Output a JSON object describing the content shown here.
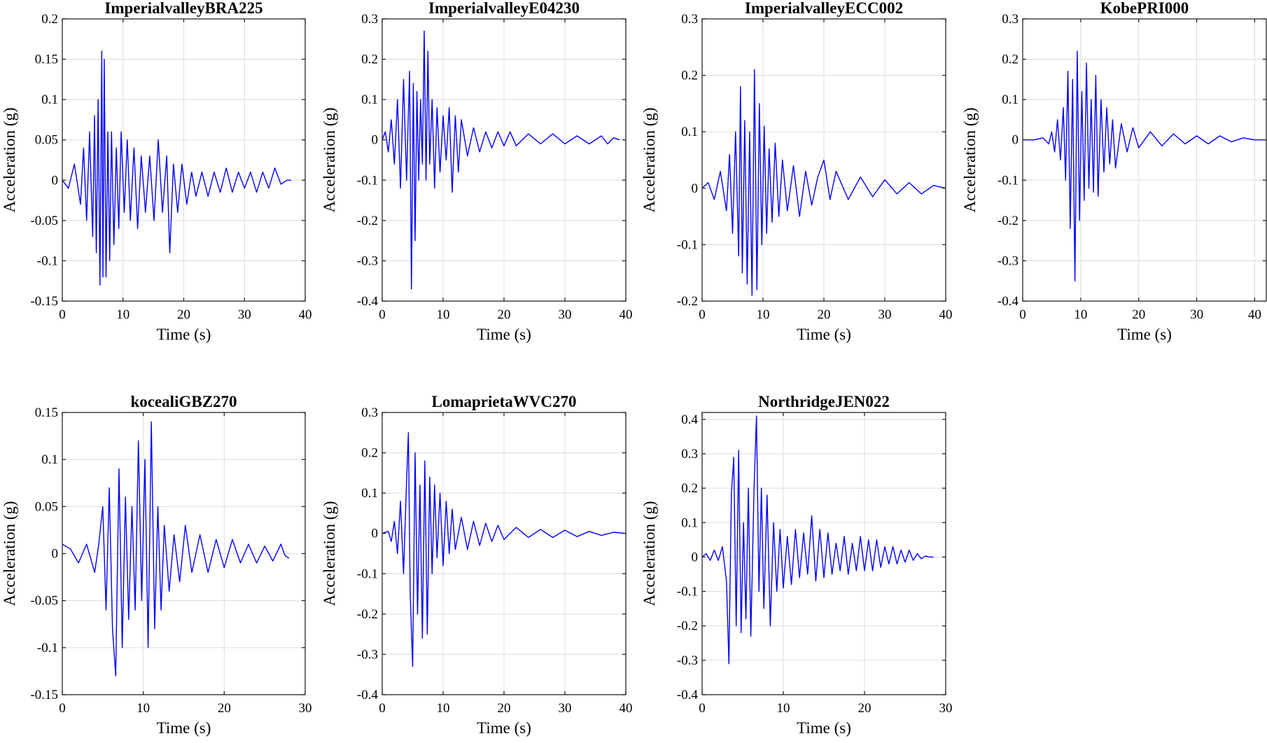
{
  "colors": {
    "trace": "#0000ff",
    "grid": "#dcdcdc",
    "axis": "#262626"
  },
  "chart_data": [
    {
      "type": "line",
      "title": "ImperialvalleyBRA225",
      "xlabel": "Time (s)",
      "ylabel": "Acceleration (g)",
      "xlim": [
        0,
        40
      ],
      "ylim": [
        -0.15,
        0.2
      ],
      "xticks": [
        0,
        10,
        20,
        30,
        40
      ],
      "xtick_labels": [
        "0",
        "10",
        "20",
        "30",
        "40"
      ],
      "yticks": [
        -0.15,
        -0.1,
        -0.05,
        0,
        0.05,
        0.1,
        0.15,
        0.2
      ],
      "ytick_labels": [
        "-0.15",
        "-0.1",
        "-0.05",
        "0",
        "0.05",
        "0.1",
        "0.15",
        "0.2"
      ],
      "grid": true,
      "series": [
        {
          "t": [
            0,
            1,
            2,
            3,
            3.5,
            4,
            4.5,
            5,
            5.3,
            5.6,
            5.9,
            6.2,
            6.5,
            6.7,
            6.9,
            7.2,
            7.5,
            7.8,
            8.1,
            8.5,
            8.9,
            9.3,
            9.7,
            10.2,
            10.7,
            11.2,
            11.8,
            12.4,
            13,
            13.7,
            14.4,
            15.1,
            15.8,
            16.5,
            17.2,
            17.7,
            18.3,
            19,
            19.7,
            20.5,
            21.3,
            22,
            23,
            24,
            25,
            26,
            27,
            28,
            29,
            30,
            31,
            32,
            33,
            34,
            35,
            36,
            37,
            37.7
          ],
          "y": [
            0,
            -0.01,
            0.02,
            -0.03,
            0.04,
            -0.05,
            0.06,
            -0.07,
            0.08,
            -0.09,
            0.1,
            -0.13,
            0.16,
            -0.12,
            0.15,
            -0.12,
            0.06,
            -0.1,
            0.06,
            -0.08,
            0.04,
            -0.06,
            0.06,
            -0.04,
            0.05,
            -0.05,
            0.04,
            -0.06,
            0.03,
            -0.04,
            0.03,
            -0.05,
            0.05,
            -0.04,
            0.03,
            -0.09,
            0.02,
            -0.04,
            0.02,
            -0.03,
            0.01,
            -0.02,
            0.01,
            -0.02,
            0.01,
            -0.015,
            0.015,
            -0.015,
            0.01,
            -0.01,
            0.01,
            -0.015,
            0.01,
            -0.01,
            0.015,
            -0.005,
            0,
            0
          ]
        }
      ]
    },
    {
      "type": "line",
      "title": "ImperialvalleyE04230",
      "xlabel": "Time (s)",
      "ylabel": "Acceleration (g)",
      "xlim": [
        0,
        40
      ],
      "ylim": [
        -0.4,
        0.3
      ],
      "xticks": [
        0,
        10,
        20,
        30,
        40
      ],
      "xtick_labels": [
        "0",
        "10",
        "20",
        "30",
        "40"
      ],
      "yticks": [
        -0.4,
        -0.3,
        -0.2,
        -0.1,
        0,
        0.1,
        0.2,
        0.3
      ],
      "ytick_labels": [
        "-0.4",
        "-0.3",
        "-0.2",
        "-0.1",
        "0",
        "0.1",
        "0.2",
        "0.3"
      ],
      "grid": true,
      "series": [
        {
          "t": [
            0,
            0.5,
            1,
            1.5,
            2,
            2.5,
            3,
            3.5,
            4,
            4.5,
            4.8,
            5.1,
            5.4,
            5.7,
            6,
            6.3,
            6.6,
            6.9,
            7.2,
            7.5,
            7.8,
            8.2,
            8.6,
            9,
            9.5,
            10,
            10.5,
            11,
            11.5,
            12,
            12.5,
            13,
            14,
            15,
            16,
            17,
            18,
            19,
            20,
            21,
            22,
            24,
            26,
            28,
            30,
            32,
            34,
            36,
            37,
            38,
            39
          ],
          "y": [
            0,
            0.02,
            -0.03,
            0.05,
            -0.06,
            0.1,
            -0.12,
            0.15,
            -0.1,
            0.17,
            -0.37,
            0.14,
            -0.25,
            0.12,
            -0.1,
            0.1,
            -0.06,
            0.27,
            -0.1,
            0.22,
            -0.06,
            0.1,
            -0.12,
            0.08,
            -0.08,
            0.06,
            -0.05,
            0.08,
            -0.13,
            0.06,
            -0.08,
            0.05,
            -0.04,
            0.03,
            -0.03,
            0.02,
            -0.02,
            0.02,
            -0.015,
            0.02,
            -0.015,
            0.015,
            -0.01,
            0.015,
            -0.01,
            0.01,
            -0.01,
            0.01,
            -0.01,
            0.005,
            0
          ]
        }
      ]
    },
    {
      "type": "line",
      "title": "ImperialvalleyECC002",
      "xlabel": "Time (s)",
      "ylabel": "Acceleration (g)",
      "xlim": [
        0,
        40
      ],
      "ylim": [
        -0.2,
        0.3
      ],
      "xticks": [
        0,
        10,
        20,
        30,
        40
      ],
      "xtick_labels": [
        "0",
        "10",
        "20",
        "30",
        "40"
      ],
      "yticks": [
        -0.2,
        -0.1,
        0,
        0.1,
        0.2,
        0.3
      ],
      "ytick_labels": [
        "-0.2",
        "-0.1",
        "0",
        "0.1",
        "0.2",
        "0.3"
      ],
      "grid": true,
      "series": [
        {
          "t": [
            0,
            1,
            2,
            3,
            4,
            4.5,
            5,
            5.5,
            6,
            6.3,
            6.6,
            7,
            7.4,
            7.8,
            8.2,
            8.6,
            9,
            9.4,
            9.8,
            10.2,
            10.6,
            11,
            11.5,
            12,
            12.6,
            13.2,
            14,
            15,
            16,
            17,
            18,
            19,
            20,
            21,
            22,
            24,
            26,
            28,
            30,
            32,
            34,
            36,
            38,
            40
          ],
          "y": [
            0,
            0.01,
            -0.02,
            0.03,
            -0.04,
            0.06,
            -0.08,
            0.1,
            -0.12,
            0.18,
            -0.15,
            0.12,
            -0.17,
            0.1,
            -0.19,
            0.21,
            -0.18,
            0.15,
            -0.1,
            0.11,
            -0.08,
            0.07,
            -0.06,
            0.08,
            -0.05,
            0.05,
            -0.04,
            0.04,
            -0.05,
            0.03,
            -0.03,
            0.02,
            0.05,
            -0.02,
            0.03,
            -0.02,
            0.02,
            -0.015,
            0.015,
            -0.01,
            0.01,
            -0.01,
            0.005,
            0
          ]
        }
      ]
    },
    {
      "type": "line",
      "title": "KobePRI000",
      "xlabel": "Time (s)",
      "ylabel": "Acceleration (g)",
      "xlim": [
        0,
        42
      ],
      "ylim": [
        -0.4,
        0.3
      ],
      "xticks": [
        0,
        10,
        20,
        30,
        40
      ],
      "xtick_labels": [
        "0",
        "10",
        "20",
        "30",
        "40"
      ],
      "yticks": [
        -0.4,
        -0.3,
        -0.2,
        -0.1,
        0,
        0.1,
        0.2,
        0.3
      ],
      "ytick_labels": [
        "-0.4",
        "-0.3",
        "-0.2",
        "-0.1",
        "0",
        "0.1",
        "0.2",
        "0.3"
      ],
      "grid": true,
      "series": [
        {
          "t": [
            0,
            2,
            3.5,
            4.5,
            5,
            5.5,
            6,
            6.5,
            7,
            7.4,
            7.8,
            8.2,
            8.6,
            9,
            9.4,
            9.8,
            10.2,
            10.6,
            11,
            11.4,
            11.8,
            12.2,
            12.6,
            13,
            13.5,
            14,
            14.5,
            15,
            15.5,
            16,
            17,
            18,
            19,
            20,
            22,
            24,
            26,
            28,
            30,
            32,
            34,
            36,
            38,
            40,
            42
          ],
          "y": [
            0,
            0,
            0.005,
            -0.01,
            0.02,
            -0.03,
            0.05,
            -0.05,
            0.08,
            -0.1,
            0.17,
            -0.22,
            0.15,
            -0.35,
            0.22,
            -0.2,
            0.12,
            -0.15,
            0.19,
            -0.12,
            0.1,
            -0.13,
            0.16,
            -0.14,
            0.1,
            -0.08,
            0.08,
            -0.06,
            0.05,
            -0.07,
            0.04,
            -0.03,
            0.03,
            -0.02,
            0.02,
            -0.015,
            0.015,
            -0.01,
            0.01,
            -0.01,
            0.01,
            -0.005,
            0.005,
            0,
            0
          ]
        }
      ]
    },
    {
      "type": "line",
      "title": "kocealiGBZ270",
      "xlabel": "Time (s)",
      "ylabel": "Acceleration (g)",
      "xlim": [
        0,
        30
      ],
      "ylim": [
        -0.15,
        0.15
      ],
      "xticks": [
        0,
        10,
        20,
        30
      ],
      "xtick_labels": [
        "0",
        "10",
        "20",
        "30"
      ],
      "yticks": [
        -0.15,
        -0.1,
        -0.05,
        0,
        0.05,
        0.1,
        0.15
      ],
      "ytick_labels": [
        "-0.15",
        "-0.1",
        "-0.05",
        "0",
        "0.05",
        "0.1",
        "0.15"
      ],
      "grid": true,
      "series": [
        {
          "t": [
            0,
            1,
            2,
            3,
            4,
            4.5,
            5,
            5.4,
            5.8,
            6.2,
            6.6,
            7,
            7.4,
            7.8,
            8.2,
            8.6,
            9,
            9.4,
            9.8,
            10.2,
            10.6,
            11,
            11.4,
            11.8,
            12.2,
            12.6,
            13.2,
            13.8,
            14.5,
            15.2,
            16,
            17,
            18,
            19,
            20,
            21,
            22,
            23,
            24,
            25,
            26,
            27,
            27.5,
            28
          ],
          "y": [
            0.01,
            0.005,
            -0.01,
            0.01,
            -0.02,
            0.01,
            0.05,
            -0.06,
            0.07,
            -0.08,
            -0.13,
            0.09,
            -0.1,
            0.06,
            -0.07,
            0.05,
            -0.06,
            0.12,
            -0.05,
            0.1,
            -0.1,
            0.14,
            -0.08,
            0.05,
            -0.06,
            0.03,
            -0.04,
            0.02,
            -0.03,
            0.03,
            -0.02,
            0.02,
            -0.02,
            0.015,
            -0.015,
            0.015,
            -0.01,
            0.01,
            -0.01,
            0.008,
            -0.008,
            0.01,
            -0.002,
            -0.005
          ]
        }
      ]
    },
    {
      "type": "line",
      "title": "LomaprietaWVC270",
      "xlabel": "Time (s)",
      "ylabel": "Acceleration (g)",
      "xlim": [
        0,
        40
      ],
      "ylim": [
        -0.4,
        0.3
      ],
      "xticks": [
        0,
        10,
        20,
        30,
        40
      ],
      "xtick_labels": [
        "0",
        "10",
        "20",
        "30",
        "40"
      ],
      "yticks": [
        -0.4,
        -0.3,
        -0.2,
        -0.1,
        0,
        0.1,
        0.2,
        0.3
      ],
      "ytick_labels": [
        "-0.4",
        "-0.3",
        "-0.2",
        "-0.1",
        "0",
        "0.1",
        "0.2",
        "0.3"
      ],
      "grid": true,
      "series": [
        {
          "t": [
            0,
            1,
            1.5,
            2,
            2.5,
            3,
            3.5,
            4,
            4.3,
            4.6,
            5,
            5.4,
            5.8,
            6.2,
            6.6,
            7,
            7.4,
            7.8,
            8.2,
            8.6,
            9,
            9.5,
            10,
            10.5,
            11,
            11.5,
            12,
            13,
            14,
            15,
            16,
            17,
            18,
            19,
            20,
            22,
            24,
            26,
            28,
            30,
            32,
            34,
            36,
            38,
            40
          ],
          "y": [
            0,
            0.005,
            -0.02,
            0.03,
            -0.05,
            0.08,
            -0.1,
            0.13,
            0.25,
            -0.15,
            -0.33,
            0.2,
            -0.2,
            0.12,
            -0.26,
            0.18,
            -0.25,
            0.14,
            -0.1,
            0.12,
            -0.06,
            0.1,
            -0.08,
            0.08,
            -0.05,
            0.06,
            -0.04,
            0.04,
            -0.04,
            0.03,
            -0.03,
            0.025,
            -0.02,
            0.02,
            -0.015,
            0.015,
            -0.01,
            0.01,
            -0.01,
            0.008,
            -0.008,
            0.005,
            -0.005,
            0.003,
            0
          ]
        }
      ]
    },
    {
      "type": "line",
      "title": "NorthridgeJEN022",
      "xlabel": "Time (s)",
      "ylabel": "Acceleration (g)",
      "xlim": [
        0,
        30
      ],
      "ylim": [
        -0.4,
        0.42
      ],
      "xticks": [
        0,
        10,
        20,
        30
      ],
      "xtick_labels": [
        "0",
        "10",
        "20",
        "30"
      ],
      "yticks": [
        -0.4,
        -0.3,
        -0.2,
        -0.1,
        0,
        0.1,
        0.2,
        0.3,
        0.4
      ],
      "ytick_labels": [
        "-0.4",
        "-0.3",
        "-0.2",
        "-0.1",
        "0",
        "0.1",
        "0.2",
        "0.3",
        "0.4"
      ],
      "grid": true,
      "series": [
        {
          "t": [
            0,
            0.5,
            1,
            1.5,
            2,
            2.5,
            3,
            3.3,
            3.6,
            3.9,
            4.2,
            4.5,
            4.8,
            5.1,
            5.4,
            5.7,
            6,
            6.4,
            6.7,
            7,
            7.3,
            7.6,
            8,
            8.4,
            8.8,
            9.2,
            9.6,
            10,
            10.5,
            11,
            11.5,
            12,
            12.5,
            13,
            13.5,
            14,
            14.5,
            15,
            15.5,
            16,
            16.5,
            17,
            17.5,
            18,
            18.5,
            19,
            19.5,
            20,
            20.5,
            21,
            21.5,
            22,
            22.5,
            23,
            23.5,
            24,
            24.5,
            25,
            25.5,
            26,
            26.5,
            27,
            27.5,
            28,
            28.5
          ],
          "y": [
            0,
            0.01,
            -0.01,
            0.02,
            -0.01,
            0.03,
            -0.07,
            -0.31,
            0.18,
            0.29,
            -0.2,
            0.31,
            -0.22,
            0.1,
            -0.18,
            0.2,
            -0.23,
            0.2,
            0.41,
            -0.1,
            0.2,
            -0.15,
            0.18,
            -0.2,
            0.1,
            -0.1,
            0.08,
            -0.09,
            0.06,
            -0.08,
            0.08,
            -0.06,
            0.07,
            -0.05,
            0.12,
            -0.07,
            0.08,
            -0.06,
            0.07,
            -0.05,
            0.04,
            -0.04,
            0.06,
            -0.05,
            0.04,
            -0.04,
            0.06,
            -0.04,
            0.05,
            -0.04,
            0.05,
            -0.03,
            0.03,
            -0.02,
            0.03,
            -0.02,
            0.02,
            -0.015,
            0.02,
            -0.01,
            0.01,
            -0.005,
            0.003,
            0,
            0
          ]
        }
      ]
    }
  ]
}
